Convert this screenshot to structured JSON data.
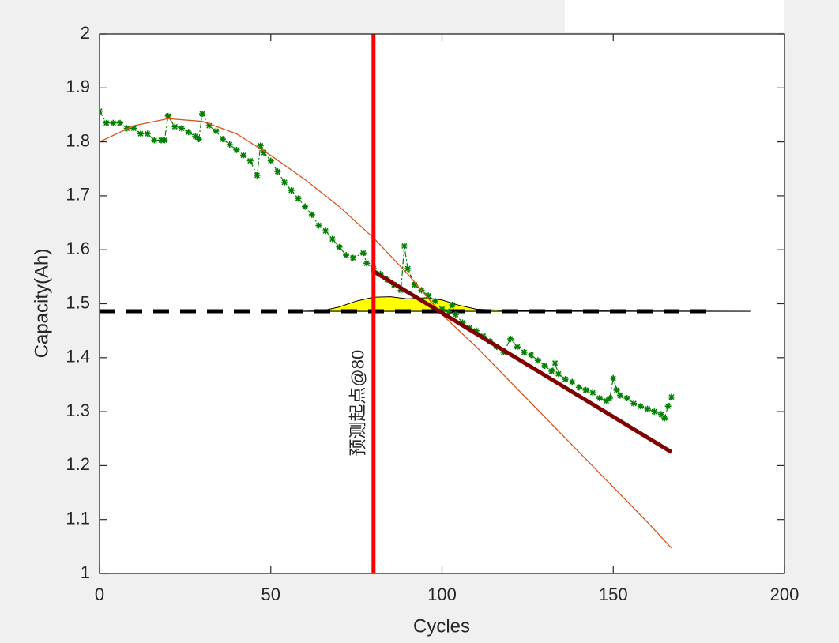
{
  "chart_data": {
    "type": "line",
    "xlabel": "Cycles",
    "ylabel": "Capacity(Ah)",
    "xlim": [
      0,
      200
    ],
    "xticks": [
      0,
      50,
      100,
      150,
      200
    ],
    "ylim": [
      1,
      2
    ],
    "yticks": [
      1,
      1.1,
      1.2,
      1.3,
      1.4,
      1.5,
      1.6,
      1.7,
      1.8,
      1.9,
      2
    ],
    "grid": false,
    "series": [
      {
        "style": "area",
        "color": "#ffff00",
        "baseline": 1.486,
        "x": [
          58,
          65,
          70,
          75,
          80,
          85,
          90,
          95,
          100,
          105,
          110,
          120,
          190
        ],
        "values": [
          1.486,
          1.487,
          1.494,
          1.505,
          1.512,
          1.513,
          1.509,
          1.511,
          1.507,
          1.497,
          1.49,
          1.487,
          1.486
        ]
      },
      {
        "style": "dashed",
        "color": "#000000",
        "x": [
          0,
          180
        ],
        "values": [
          1.486,
          1.486
        ]
      },
      {
        "style": "markers",
        "color": "#008000",
        "x": [
          0,
          2,
          4,
          6,
          8,
          10,
          12,
          14,
          16,
          18,
          19,
          20,
          22,
          24,
          26,
          28,
          29,
          30,
          32,
          34,
          36,
          38,
          40,
          42,
          44,
          46,
          47,
          48,
          50,
          52,
          54,
          56,
          58,
          60,
          62,
          64,
          66,
          68,
          70,
          72,
          74,
          77,
          78,
          80,
          82,
          84,
          86,
          88,
          89,
          90,
          92,
          94,
          96,
          98,
          100,
          102,
          103,
          104,
          106,
          108,
          110,
          112,
          114,
          116,
          118,
          120,
          122,
          124,
          126,
          128,
          130,
          132,
          133,
          134,
          136,
          138,
          140,
          142,
          144,
          146,
          148,
          149,
          150,
          151,
          152,
          154,
          156,
          158,
          160,
          162,
          164,
          165,
          166,
          167
        ],
        "values": [
          1.857,
          1.835,
          1.835,
          1.835,
          1.825,
          1.825,
          1.815,
          1.815,
          1.803,
          1.803,
          1.803,
          1.848,
          1.828,
          1.825,
          1.818,
          1.81,
          1.805,
          1.852,
          1.83,
          1.82,
          1.805,
          1.795,
          1.785,
          1.775,
          1.765,
          1.738,
          1.793,
          1.78,
          1.765,
          1.745,
          1.725,
          1.71,
          1.695,
          1.68,
          1.665,
          1.645,
          1.635,
          1.62,
          1.605,
          1.59,
          1.585,
          1.594,
          1.575,
          1.565,
          1.555,
          1.545,
          1.535,
          1.525,
          1.607,
          1.565,
          1.535,
          1.525,
          1.515,
          1.505,
          1.49,
          1.485,
          1.498,
          1.48,
          1.465,
          1.455,
          1.45,
          1.44,
          1.43,
          1.42,
          1.41,
          1.435,
          1.42,
          1.41,
          1.405,
          1.395,
          1.385,
          1.375,
          1.39,
          1.37,
          1.36,
          1.355,
          1.345,
          1.34,
          1.335,
          1.325,
          1.32,
          1.325,
          1.362,
          1.34,
          1.33,
          1.325,
          1.315,
          1.31,
          1.305,
          1.3,
          1.295,
          1.288,
          1.31,
          1.327
        ]
      },
      {
        "style": "thin",
        "color": "#d95319",
        "x": [
          0,
          10,
          20,
          30,
          40,
          50,
          60,
          70,
          80,
          90,
          100,
          110,
          120,
          130,
          140,
          150,
          160,
          167
        ],
        "values": [
          1.8,
          1.83,
          1.843,
          1.838,
          1.815,
          1.775,
          1.73,
          1.68,
          1.622,
          1.555,
          1.48,
          1.42,
          1.355,
          1.29,
          1.225,
          1.16,
          1.095,
          1.047
        ]
      },
      {
        "style": "thick",
        "color": "#800000",
        "x": [
          80,
          167
        ],
        "values": [
          1.56,
          1.225
        ]
      }
    ],
    "vline": {
      "x": 80,
      "color": "#ff0000"
    },
    "annotation": {
      "text": "预测起点@80",
      "x": 80,
      "y": 1.316
    }
  }
}
